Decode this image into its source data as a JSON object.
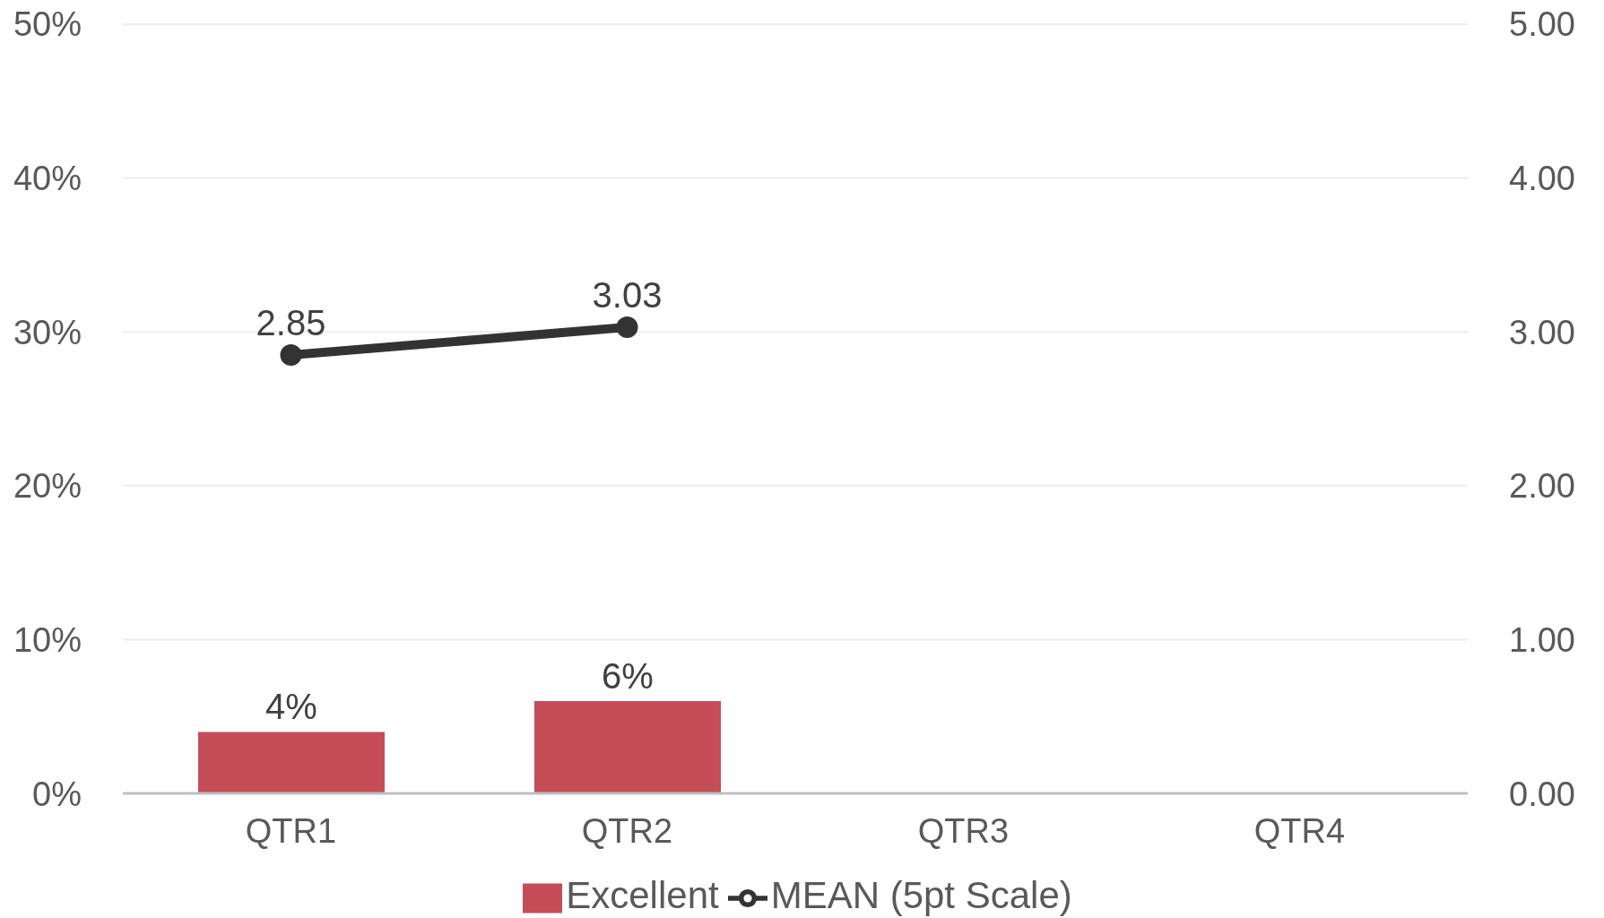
{
  "chart_data": {
    "type": "bar",
    "categories": [
      "QTR1",
      "QTR2",
      "QTR3",
      "QTR4"
    ],
    "series": [
      {
        "name": "Excellent",
        "color": "#c44d58",
        "values": [
          4,
          6,
          null,
          null
        ],
        "value_labels": [
          "4%",
          "6%",
          null,
          null
        ]
      },
      {
        "name": "MEAN (5pt Scale)",
        "type": "line",
        "axis": "y2",
        "color": "#333333",
        "values": [
          2.85,
          3.03,
          null,
          null
        ],
        "value_labels": [
          "2.85",
          "3.03",
          null,
          null
        ]
      }
    ],
    "ylim": [
      0,
      50
    ],
    "yticks": [
      {
        "value": 0,
        "label": "0%"
      },
      {
        "value": 10,
        "label": "10%"
      },
      {
        "value": 20,
        "label": "20%"
      },
      {
        "value": 30,
        "label": "30%"
      },
      {
        "value": 40,
        "label": "40%"
      },
      {
        "value": 50,
        "label": "50%"
      }
    ],
    "y2lim": [
      0,
      5
    ],
    "y2ticks": [
      {
        "value": 0,
        "label": "0.00"
      },
      {
        "value": 1,
        "label": "1.00"
      },
      {
        "value": 2,
        "label": "2.00"
      },
      {
        "value": 3,
        "label": "3.00"
      },
      {
        "value": 4,
        "label": "4.00"
      },
      {
        "value": 5,
        "label": "5.00"
      }
    ],
    "grid": "y",
    "legend": "bottom",
    "marker": "circle"
  }
}
